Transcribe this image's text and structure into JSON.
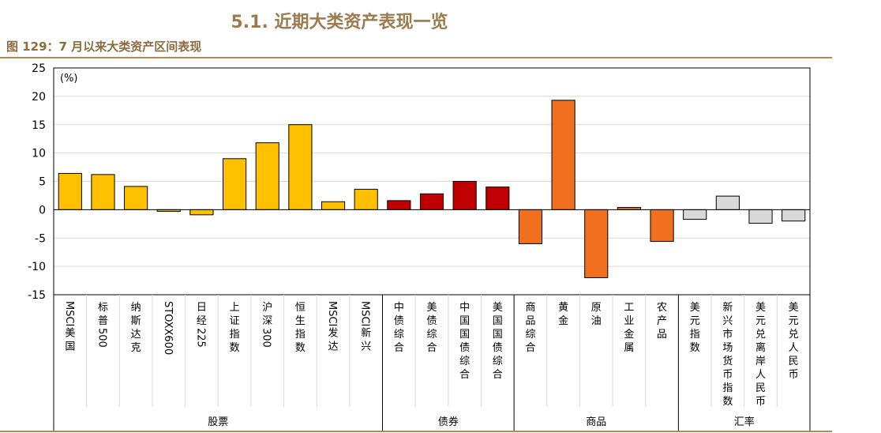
{
  "header": {
    "section_title": "5.1. 近期大类资产表现一览",
    "figure_title": "图 129：7 月以来大类资产区间表现"
  },
  "chart_data": {
    "type": "bar",
    "ylabel": "(%)",
    "ylim": [
      -15,
      25
    ],
    "yticks": [
      25,
      20,
      15,
      10,
      5,
      0,
      -5,
      -10,
      -15
    ],
    "grid": true,
    "categories": [
      "MSCI美国",
      "标普500",
      "纳斯达克",
      "STOXX600",
      "日经225",
      "上证指数",
      "沪深300",
      "恒生指数",
      "MSCI发达",
      "MSCI新兴",
      "中债综合",
      "美债综合",
      "中国国债综合",
      "美国国债综合",
      "商品综合",
      "黄金",
      "原油",
      "工业金属",
      "农产品",
      "美元指数",
      "新兴市场货币指数",
      "美元兑离岸人民币",
      "美元兑人民币"
    ],
    "values": [
      6.4,
      6.2,
      4.1,
      -0.3,
      -0.9,
      9.0,
      11.8,
      15.0,
      1.4,
      3.6,
      1.6,
      2.8,
      5.0,
      4.0,
      -6.0,
      19.3,
      -12.0,
      0.4,
      -5.6,
      -1.7,
      2.4,
      -2.4,
      -2.0
    ],
    "groups": [
      {
        "name": "股票",
        "count": 10,
        "color": "#ffc000"
      },
      {
        "name": "债券",
        "count": 4,
        "color": "#c00000"
      },
      {
        "name": "商品",
        "count": 5,
        "color": "#f07020"
      },
      {
        "name": "汇率",
        "count": 4,
        "color": "#d9d9d9"
      }
    ]
  }
}
